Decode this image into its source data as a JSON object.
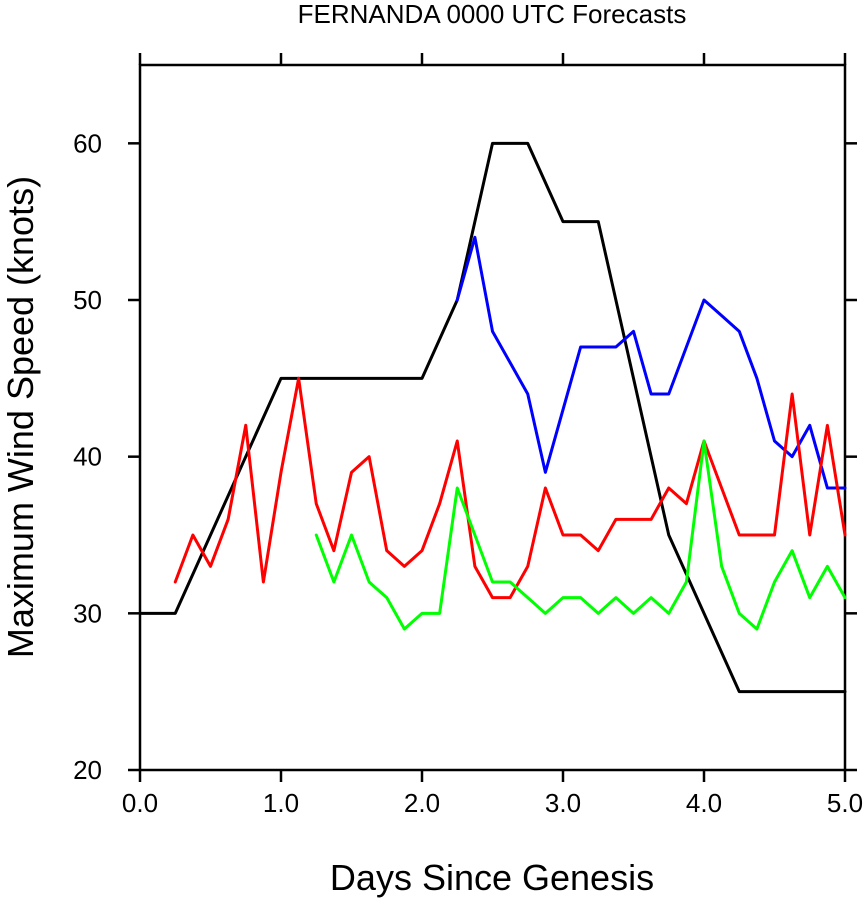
{
  "chart_data": {
    "type": "line",
    "title": "FERNANDA 0000 UTC Forecasts",
    "xlabel": "Days Since Genesis",
    "ylabel": "Maximum Wind Speed (knots)",
    "xlim": [
      0,
      5
    ],
    "ylim": [
      20,
      65
    ],
    "xticks": [
      0,
      1,
      2,
      3,
      4,
      5
    ],
    "xtick_labels": [
      "0.0",
      "1.0",
      "2.0",
      "3.0",
      "4.0",
      "5.0"
    ],
    "yticks": [
      20,
      30,
      40,
      50,
      60
    ],
    "ytick_labels": [
      "20",
      "30",
      "40",
      "50",
      "60"
    ],
    "grid": false,
    "series": [
      {
        "color": "#000000",
        "x": [
          0,
          0.25,
          1.0,
          2.0,
          2.25,
          2.5,
          2.75,
          3.0,
          3.25,
          3.75,
          4.25,
          5.0
        ],
        "y": [
          30,
          30,
          45,
          45,
          50,
          60,
          60,
          55,
          55,
          35,
          25,
          25
        ]
      },
      {
        "color": "#0000ff",
        "x": [
          2.25,
          2.375,
          2.5,
          2.625,
          2.75,
          2.875,
          3.0,
          3.125,
          3.25,
          3.375,
          3.5,
          3.625,
          3.75,
          3.875,
          4.0,
          4.125,
          4.25,
          4.375,
          4.5,
          4.625,
          4.75,
          4.875,
          5.0
        ],
        "y": [
          50,
          54,
          48,
          46,
          44,
          39,
          43,
          47,
          47,
          47,
          48,
          44,
          44,
          47,
          50,
          49,
          48,
          45,
          41,
          40,
          42,
          38,
          38
        ]
      },
      {
        "color": "#ff0000",
        "x": [
          0.25,
          0.375,
          0.5,
          0.625,
          0.75,
          0.875,
          1.0,
          1.125,
          1.25,
          1.375,
          1.5,
          1.625,
          1.75,
          1.875,
          2.0,
          2.125,
          2.25,
          2.375,
          2.5,
          2.625,
          2.75,
          2.875,
          3.0,
          3.125,
          3.25,
          3.375,
          3.5,
          3.625,
          3.75,
          3.875,
          4.0,
          4.125,
          4.25,
          4.375,
          4.5,
          4.625,
          4.75,
          4.875,
          5.0
        ],
        "y": [
          32,
          35,
          33,
          36,
          42,
          32,
          39,
          45,
          37,
          34,
          39,
          40,
          34,
          33,
          34,
          37,
          41,
          33,
          31,
          31,
          33,
          38,
          35,
          35,
          34,
          36,
          36,
          36,
          38,
          37,
          41,
          38,
          35,
          35,
          35,
          44,
          35,
          42,
          35
        ]
      },
      {
        "color": "#00ff00",
        "x": [
          1.25,
          1.375,
          1.5,
          1.625,
          1.75,
          1.875,
          2.0,
          2.125,
          2.25,
          2.375,
          2.5,
          2.625,
          2.75,
          2.875,
          3.0,
          3.125,
          3.25,
          3.375,
          3.5,
          3.625,
          3.75,
          3.875,
          4.0,
          4.125,
          4.25,
          4.375,
          4.5,
          4.625,
          4.75,
          4.875,
          5.0
        ],
        "y": [
          35,
          32,
          35,
          32,
          31,
          29,
          30,
          30,
          38,
          35,
          32,
          32,
          31,
          30,
          31,
          31,
          30,
          31,
          30,
          31,
          30,
          32,
          41,
          33,
          30,
          29,
          32,
          34,
          31,
          33,
          31
        ]
      }
    ]
  }
}
